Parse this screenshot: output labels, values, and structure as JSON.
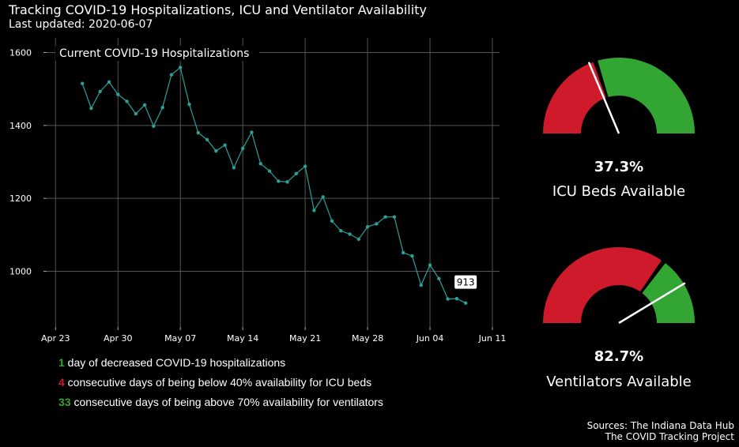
{
  "header": {
    "title": "Tracking COVID-19 Hospitalizations, ICU and Ventilator Availability",
    "subtitle": "Last updated: 2020-06-07"
  },
  "colors": {
    "line": "#2aa198",
    "green": "#33a532",
    "red": "#cf1a2b",
    "grid": "#555555"
  },
  "chart_data": [
    {
      "type": "line",
      "title": "Current COVID-19 Hospitalizations",
      "xlabel": "",
      "ylabel": "",
      "x": [
        "2020-04-26",
        "2020-04-27",
        "2020-04-28",
        "2020-04-29",
        "2020-04-30",
        "2020-05-01",
        "2020-05-02",
        "2020-05-03",
        "2020-05-04",
        "2020-05-05",
        "2020-05-06",
        "2020-05-07",
        "2020-05-08",
        "2020-05-09",
        "2020-05-10",
        "2020-05-11",
        "2020-05-12",
        "2020-05-13",
        "2020-05-14",
        "2020-05-15",
        "2020-05-16",
        "2020-05-17",
        "2020-05-18",
        "2020-05-19",
        "2020-05-20",
        "2020-05-21",
        "2020-05-22",
        "2020-05-23",
        "2020-05-24",
        "2020-05-25",
        "2020-05-26",
        "2020-05-27",
        "2020-05-28",
        "2020-05-29",
        "2020-05-30",
        "2020-05-31",
        "2020-06-01",
        "2020-06-02",
        "2020-06-03",
        "2020-06-04",
        "2020-06-05",
        "2020-06-06",
        "2020-06-07",
        "2020-06-08"
      ],
      "values": [
        1515,
        1447,
        1493,
        1519,
        1485,
        1466,
        1432,
        1456,
        1398,
        1449,
        1539,
        1559,
        1458,
        1380,
        1361,
        1330,
        1346,
        1284,
        1337,
        1381,
        1295,
        1275,
        1247,
        1245,
        1268,
        1288,
        1167,
        1204,
        1138,
        1111,
        1102,
        1088,
        1122,
        1130,
        1149,
        1149,
        1051,
        1042,
        962,
        1017,
        980,
        924,
        925,
        913
      ],
      "xticks": [
        "Apr 23",
        "Apr 30",
        "May 07",
        "May 14",
        "May 21",
        "May 28",
        "Jun 04",
        "Jun 11"
      ],
      "yticks": [
        "1000",
        "1200",
        "1400",
        "1600"
      ],
      "ylim": [
        830,
        1640
      ],
      "xlim": [
        "2020-04-22",
        "2020-06-11"
      ],
      "grid": true,
      "annotation": "913"
    },
    {
      "type": "gauge",
      "title": "ICU Beds Available",
      "value": 37.3,
      "value_label": "37.3%",
      "threshold": 40,
      "range": [
        0,
        100
      ]
    },
    {
      "type": "gauge",
      "title": "Ventilators Available",
      "value": 82.7,
      "value_label": "82.7%",
      "threshold": 70,
      "range": [
        0,
        100
      ]
    }
  ],
  "stats": [
    {
      "num": "1",
      "color": "#33a532",
      "text": " day of decreased COVID-19 hospitalizations"
    },
    {
      "num": "4",
      "color": "#cf1a2b",
      "text": " consecutive days of being below 40% availability for ICU beds"
    },
    {
      "num": "33",
      "color": "#33a532",
      "text": " consecutive days of being above 70% availability for ventilators"
    }
  ],
  "sources": {
    "line1": "Sources: The Indiana Data Hub",
    "line2": "The COVID Tracking Project"
  }
}
